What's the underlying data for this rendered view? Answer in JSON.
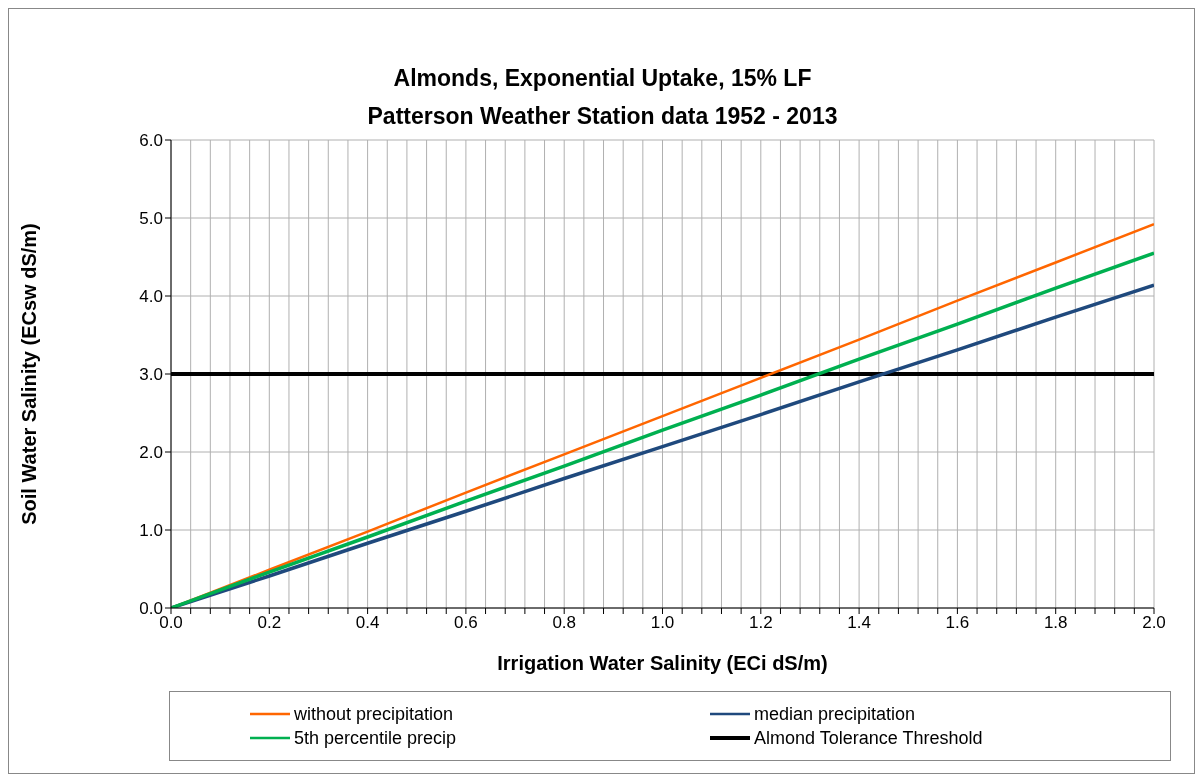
{
  "chart_data": {
    "type": "line",
    "title": "Almonds, Exponential Uptake, 15% LF",
    "subtitle": "Patterson Weather Station data 1952 - 2013",
    "xlabel": "Irrigation Water Salinity (ECi dS/m)",
    "ylabel": "Soil Water Salinity (ECsw dS/m)",
    "x": [
      0,
      0.2,
      0.4,
      0.6,
      0.8,
      1.0,
      1.2,
      1.4,
      1.6,
      1.8,
      2.0
    ],
    "series": [
      {
        "name": "without precipitation",
        "color": "#ff6600",
        "values": [
          0,
          0.49,
          0.98,
          1.48,
          1.97,
          2.46,
          2.95,
          3.44,
          3.94,
          4.43,
          4.92
        ]
      },
      {
        "name": "median precipitation",
        "color": "#1f497d",
        "values": [
          0,
          0.41,
          0.83,
          1.24,
          1.66,
          2.07,
          2.48,
          2.9,
          3.31,
          3.73,
          4.14
        ]
      },
      {
        "name": "5th percentile precip",
        "color": "#00b050",
        "values": [
          0,
          0.46,
          0.91,
          1.37,
          1.82,
          2.28,
          2.73,
          3.19,
          3.64,
          4.1,
          4.55
        ]
      }
    ],
    "ref_lines": [
      {
        "axis": "y",
        "value": 3,
        "label": "Almond Tolerance Threshold",
        "color": "#000000"
      }
    ],
    "xlim": [
      0,
      2
    ],
    "xticks": [
      {
        "value": 0,
        "label": "0.0"
      },
      {
        "value": 0.04,
        "label": null
      },
      {
        "value": 0.08,
        "label": null
      },
      {
        "value": 0.12,
        "label": null
      },
      {
        "value": 0.16,
        "label": null
      },
      {
        "value": 0.2,
        "label": "0.2"
      },
      {
        "value": 0.24,
        "label": null
      },
      {
        "value": 0.28,
        "label": null
      },
      {
        "value": 0.32,
        "label": null
      },
      {
        "value": 0.36,
        "label": null
      },
      {
        "value": 0.4,
        "label": "0.4"
      },
      {
        "value": 0.44,
        "label": null
      },
      {
        "value": 0.48,
        "label": null
      },
      {
        "value": 0.52,
        "label": null
      },
      {
        "value": 0.56,
        "label": null
      },
      {
        "value": 0.6,
        "label": "0.6"
      },
      {
        "value": 0.64,
        "label": null
      },
      {
        "value": 0.68,
        "label": null
      },
      {
        "value": 0.72,
        "label": null
      },
      {
        "value": 0.76,
        "label": null
      },
      {
        "value": 0.8,
        "label": "0.8"
      },
      {
        "value": 0.84,
        "label": null
      },
      {
        "value": 0.88,
        "label": null
      },
      {
        "value": 0.92,
        "label": null
      },
      {
        "value": 0.96,
        "label": null
      },
      {
        "value": 1.0,
        "label": "1.0"
      },
      {
        "value": 1.04,
        "label": null
      },
      {
        "value": 1.08,
        "label": null
      },
      {
        "value": 1.12,
        "label": null
      },
      {
        "value": 1.16,
        "label": null
      },
      {
        "value": 1.2,
        "label": "1.2"
      },
      {
        "value": 1.24,
        "label": null
      },
      {
        "value": 1.28,
        "label": null
      },
      {
        "value": 1.32,
        "label": null
      },
      {
        "value": 1.36,
        "label": null
      },
      {
        "value": 1.4,
        "label": "1.4"
      },
      {
        "value": 1.44,
        "label": null
      },
      {
        "value": 1.48,
        "label": null
      },
      {
        "value": 1.52,
        "label": null
      },
      {
        "value": 1.56,
        "label": null
      },
      {
        "value": 1.6,
        "label": "1.6"
      },
      {
        "value": 1.64,
        "label": null
      },
      {
        "value": 1.68,
        "label": null
      },
      {
        "value": 1.72,
        "label": null
      },
      {
        "value": 1.76,
        "label": null
      },
      {
        "value": 1.8,
        "label": "1.8"
      },
      {
        "value": 1.84,
        "label": null
      },
      {
        "value": 1.88,
        "label": null
      },
      {
        "value": 1.92,
        "label": null
      },
      {
        "value": 1.96,
        "label": null
      },
      {
        "value": 2.0,
        "label": "2.0"
      }
    ],
    "ylim": [
      0,
      6
    ],
    "yticks": [
      {
        "value": 0,
        "label": "0.0"
      },
      {
        "value": 1,
        "label": "1.0"
      },
      {
        "value": 2,
        "label": "2.0"
      },
      {
        "value": 3,
        "label": "3.0"
      },
      {
        "value": 4,
        "label": "4.0"
      },
      {
        "value": 5,
        "label": "5.0"
      },
      {
        "value": 6,
        "label": "6.0"
      }
    ],
    "grid": true,
    "legend": "bottom",
    "marker": "none",
    "line_style": "solid"
  }
}
